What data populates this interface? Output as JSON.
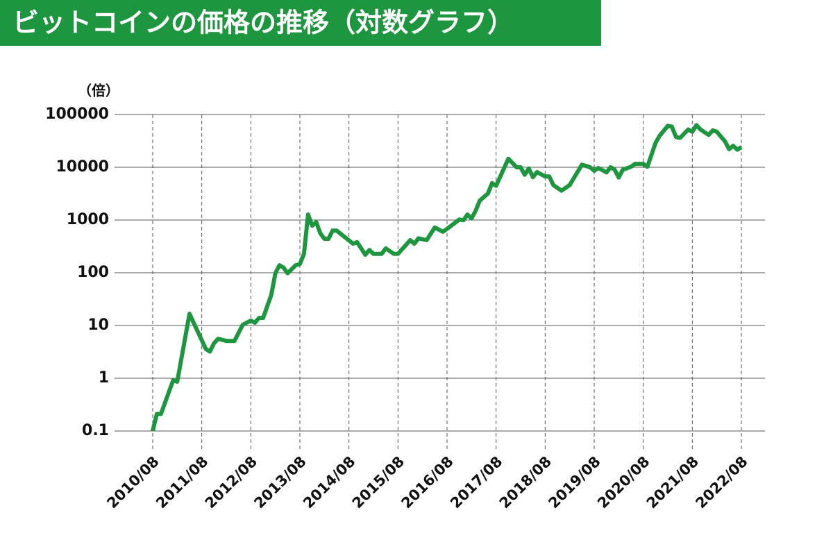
{
  "chart_data": {
    "type": "line",
    "title": "ビットコインの価格の推移（対数グラフ）",
    "y_label": "（倍）",
    "x": [
      "2010/08",
      "2010/09",
      "2010/10",
      "2011/01",
      "2011/02",
      "2011/05",
      "2011/06",
      "2011/09",
      "2011/10",
      "2011/11",
      "2011/12",
      "2012/02",
      "2012/04",
      "2012/06",
      "2012/08",
      "2012/09",
      "2012/10",
      "2012/11",
      "2013/01",
      "2013/02",
      "2013/03",
      "2013/04",
      "2013/05",
      "2013/07",
      "2013/08",
      "2013/09",
      "2013/10",
      "2013/11",
      "2013/12",
      "2014/01",
      "2014/02",
      "2014/03",
      "2014/04",
      "2014/05",
      "2014/09",
      "2014/10",
      "2014/12",
      "2015/01",
      "2015/02",
      "2015/04",
      "2015/05",
      "2015/07",
      "2015/08",
      "2015/11",
      "2015/12",
      "2016/01",
      "2016/03",
      "2016/05",
      "2016/07",
      "2016/08",
      "2016/09",
      "2016/11",
      "2016/12",
      "2017/01",
      "2017/02",
      "2017/03",
      "2017/04",
      "2017/06",
      "2017/07",
      "2017/08",
      "2017/11",
      "2018/01",
      "2018/02",
      "2018/03",
      "2018/04",
      "2018/05",
      "2018/06",
      "2018/08",
      "2018/09",
      "2018/10",
      "2018/12",
      "2019/02",
      "2019/05",
      "2019/07",
      "2019/08",
      "2019/09",
      "2019/11",
      "2019/12",
      "2020/01",
      "2020/02",
      "2020/03",
      "2020/05",
      "2020/06",
      "2020/08",
      "2020/09",
      "2020/11",
      "2020/12",
      "2021/02",
      "2021/03",
      "2021/04",
      "2021/05",
      "2021/07",
      "2021/08",
      "2021/09",
      "2021/10",
      "2021/12",
      "2022/01",
      "2022/02",
      "2022/04",
      "2022/05",
      "2022/06",
      "2022/07",
      "2022/08"
    ],
    "series": [
      {
        "name": "ビットコイン",
        "color": "#1e9640",
        "values": [
          0.1,
          0.21,
          0.21,
          0.91,
          0.86,
          16.7,
          11.3,
          3.57,
          3.2,
          4.6,
          5.6,
          5.1,
          5.1,
          10.3,
          12.4,
          11.3,
          13.9,
          13.9,
          38,
          98,
          139,
          125,
          98,
          139,
          146,
          228,
          1270,
          780,
          910,
          560,
          440,
          440,
          630,
          630,
          355,
          380,
          220,
          270,
          228,
          228,
          290,
          228,
          228,
          415,
          355,
          450,
          415,
          720,
          600,
          680,
          780,
          1020,
          990,
          1270,
          1070,
          1500,
          2330,
          3170,
          5000,
          4450,
          14500,
          10000,
          10000,
          7200,
          9500,
          6500,
          8100,
          6700,
          6700,
          4600,
          3600,
          4600,
          11200,
          10000,
          8600,
          9700,
          8000,
          10000,
          9000,
          6400,
          9000,
          10200,
          11600,
          11600,
          10200,
          28800,
          39500,
          61000,
          59000,
          37500,
          36000,
          52000,
          47000,
          63000,
          52000,
          41000,
          50000,
          47000,
          31000,
          22000,
          25500,
          21500,
          24000
        ]
      }
    ],
    "xticks": [
      "2010/08",
      "2011/08",
      "2012/08",
      "2013/08",
      "2014/08",
      "2015/08",
      "2016/08",
      "2017/08",
      "2018/08",
      "2019/08",
      "2020/08",
      "2021/08",
      "2022/08"
    ],
    "ylim": [
      0.1,
      100000
    ],
    "yticks": [
      0.1,
      1,
      10,
      100,
      1000,
      10000,
      100000
    ],
    "y_log": true,
    "grid": true
  }
}
